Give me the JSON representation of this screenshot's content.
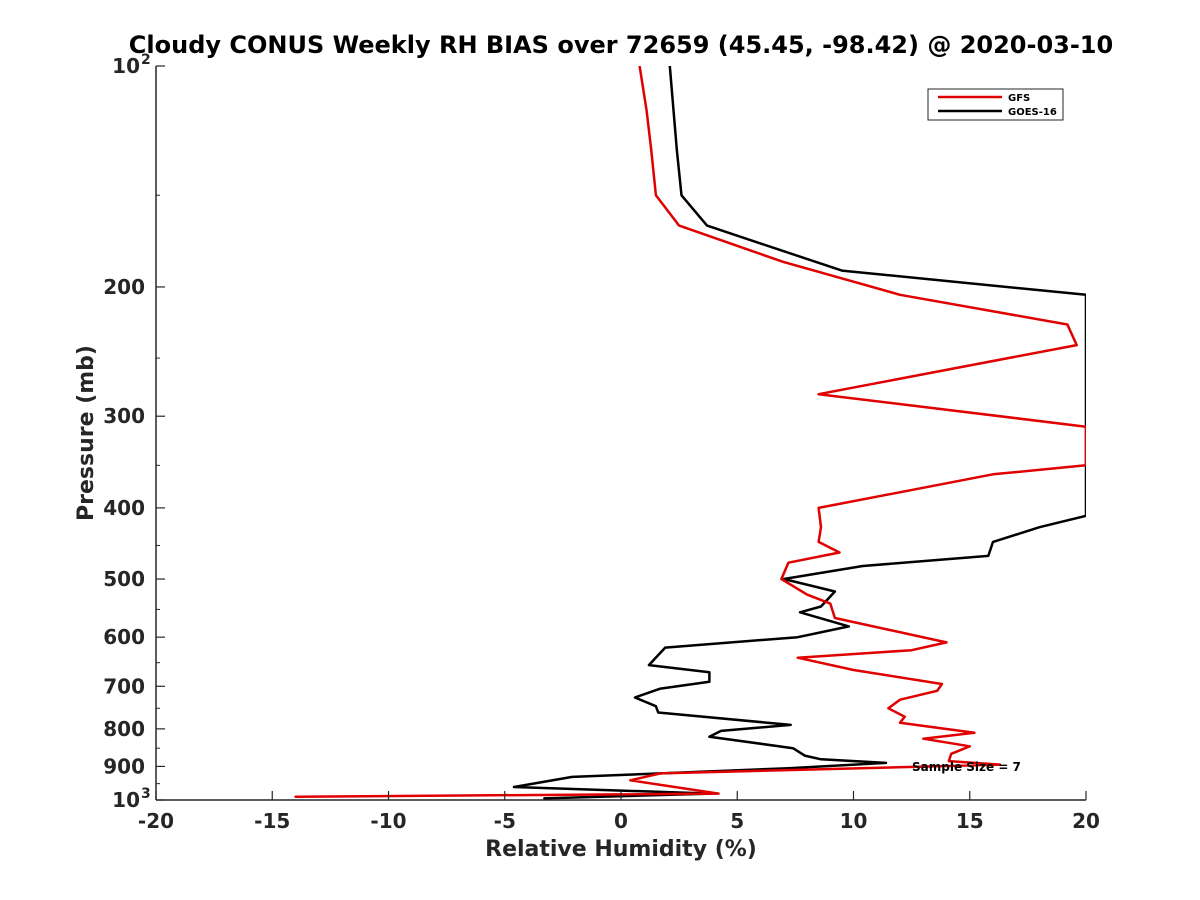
{
  "chart_data": {
    "type": "line",
    "title": "Cloudy CONUS Weekly RH BIAS over 72659 (45.45, -98.42) @ 2020-03-10",
    "xlabel": "Relative Humidity (%)",
    "ylabel": "Pressure (mb)",
    "xlim": [
      -20,
      20
    ],
    "ylim": [
      1000,
      100
    ],
    "y_scale": "log",
    "x_ticks": [
      "-20",
      "-15",
      "-10",
      "-5",
      "0",
      "5",
      "10",
      "15",
      "20"
    ],
    "y_ticks": [
      {
        "label": "10",
        "sup": "2"
      },
      {
        "label": "200",
        "sup": ""
      },
      {
        "label": "300",
        "sup": ""
      },
      {
        "label": "400",
        "sup": ""
      },
      {
        "label": "500",
        "sup": ""
      },
      {
        "label": "600",
        "sup": ""
      },
      {
        "label": "700",
        "sup": ""
      },
      {
        "label": "800",
        "sup": ""
      },
      {
        "label": "900",
        "sup": ""
      },
      {
        "label": "10",
        "sup": "3"
      }
    ],
    "grid": false,
    "legend_position": "top-right",
    "annotation": "Sample Size = 7",
    "series": [
      {
        "name": "GFS",
        "color": "#e00000",
        "points": [
          [
            0.8,
            100
          ],
          [
            1.1,
            115
          ],
          [
            1.3,
            130
          ],
          [
            1.5,
            150
          ],
          [
            2.5,
            165
          ],
          [
            7.0,
            185
          ],
          [
            12.0,
            205
          ],
          [
            19.2,
            225
          ],
          [
            19.6,
            240
          ],
          [
            8.5,
            280
          ],
          [
            20.0,
            310
          ],
          [
            20.0,
            350
          ],
          [
            16.0,
            360
          ],
          [
            8.5,
            400
          ],
          [
            8.6,
            425
          ],
          [
            8.5,
            445
          ],
          [
            9.4,
            460
          ],
          [
            7.2,
            475
          ],
          [
            6.9,
            500
          ],
          [
            8.0,
            525
          ],
          [
            9.0,
            540
          ],
          [
            9.2,
            565
          ],
          [
            14.0,
            610
          ],
          [
            12.5,
            625
          ],
          [
            7.6,
            640
          ],
          [
            10.0,
            665
          ],
          [
            13.8,
            695
          ],
          [
            13.6,
            710
          ],
          [
            12.0,
            730
          ],
          [
            11.5,
            750
          ],
          [
            12.2,
            770
          ],
          [
            12.0,
            785
          ],
          [
            15.2,
            810
          ],
          [
            13.0,
            825
          ],
          [
            15.0,
            845
          ],
          [
            14.2,
            865
          ],
          [
            14.1,
            885
          ],
          [
            16.3,
            895
          ],
          [
            1.7,
            920
          ],
          [
            0.4,
            940
          ],
          [
            4.2,
            980
          ],
          [
            -14.0,
            990
          ]
        ]
      },
      {
        "name": "GOES-16",
        "color": "#000000",
        "points": [
          [
            2.1,
            100
          ],
          [
            2.4,
            130
          ],
          [
            2.6,
            150
          ],
          [
            3.7,
            165
          ],
          [
            9.5,
            190
          ],
          [
            20.0,
            205
          ],
          [
            20.0,
            410
          ],
          [
            18.0,
            425
          ],
          [
            16.0,
            445
          ],
          [
            15.8,
            465
          ],
          [
            10.4,
            480
          ],
          [
            7.0,
            500
          ],
          [
            9.2,
            520
          ],
          [
            8.6,
            545
          ],
          [
            7.7,
            555
          ],
          [
            9.8,
            580
          ],
          [
            7.6,
            600
          ],
          [
            1.9,
            620
          ],
          [
            1.2,
            655
          ],
          [
            3.8,
            670
          ],
          [
            3.8,
            690
          ],
          [
            1.7,
            705
          ],
          [
            0.6,
            725
          ],
          [
            1.5,
            745
          ],
          [
            1.6,
            760
          ],
          [
            7.3,
            790
          ],
          [
            4.3,
            805
          ],
          [
            3.8,
            820
          ],
          [
            7.4,
            850
          ],
          [
            7.9,
            870
          ],
          [
            8.6,
            880
          ],
          [
            11.4,
            890
          ],
          [
            7.2,
            905
          ],
          [
            -2.1,
            930
          ],
          [
            -4.6,
            960
          ],
          [
            3.9,
            980
          ],
          [
            -3.3,
            995
          ]
        ]
      }
    ]
  }
}
